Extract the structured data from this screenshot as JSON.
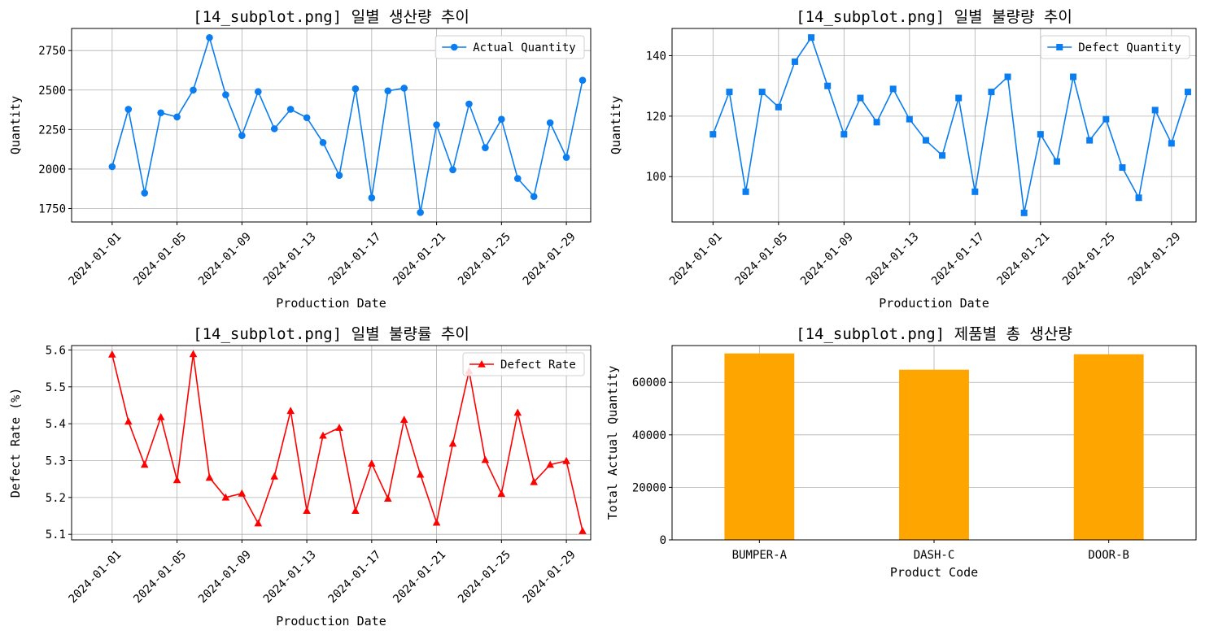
{
  "chart_data": [
    {
      "type": "line",
      "title": "[14_subplot.png] 일별 생산량 추이",
      "xlabel": "Production Date",
      "ylabel": "Quantity",
      "grid": true,
      "legend_position": "top-right",
      "marker": "circle",
      "color": "#0a7df0",
      "xlim": [
        -1.5,
        30.5
      ],
      "ylim": [
        1665,
        2890
      ],
      "yticks": [
        1750,
        2000,
        2250,
        2500,
        2750
      ],
      "xtick_indices": [
        1,
        5,
        9,
        13,
        17,
        21,
        25,
        29
      ],
      "xtick_labels": [
        "2024-01-01",
        "2024-01-05",
        "2024-01-09",
        "2024-01-13",
        "2024-01-17",
        "2024-01-21",
        "2024-01-25",
        "2024-01-29"
      ],
      "series": [
        {
          "name": "Actual Quantity",
          "x": [
            1,
            2,
            3,
            4,
            5,
            6,
            7,
            8,
            9,
            10,
            11,
            12,
            13,
            14,
            15,
            16,
            17,
            18,
            19,
            20,
            21,
            22,
            23,
            24,
            25,
            26,
            27,
            28,
            29,
            30
          ],
          "values": [
            2015,
            2378,
            1848,
            2356,
            2330,
            2500,
            2832,
            2470,
            2212,
            2490,
            2255,
            2378,
            2325,
            2168,
            1960,
            2508,
            1818,
            2495,
            2512,
            1725,
            2280,
            1995,
            2412,
            2135,
            2315,
            1940,
            1826,
            2293,
            2074,
            2562
          ]
        }
      ]
    },
    {
      "type": "line",
      "title": "[14_subplot.png] 일별 불량량 추이",
      "xlabel": "Production Date",
      "ylabel": "Quantity",
      "grid": true,
      "legend_position": "top-right",
      "marker": "square",
      "color": "#0a7df0",
      "xlim": [
        -1.5,
        30.5
      ],
      "ylim": [
        85,
        149
      ],
      "yticks": [
        100,
        120,
        140
      ],
      "xtick_indices": [
        1,
        5,
        9,
        13,
        17,
        21,
        25,
        29
      ],
      "xtick_labels": [
        "2024-01-01",
        "2024-01-05",
        "2024-01-09",
        "2024-01-13",
        "2024-01-17",
        "2024-01-21",
        "2024-01-25",
        "2024-01-29"
      ],
      "series": [
        {
          "name": "Defect Quantity",
          "x": [
            1,
            2,
            3,
            4,
            5,
            6,
            7,
            8,
            9,
            10,
            11,
            12,
            13,
            14,
            15,
            16,
            17,
            18,
            19,
            20,
            21,
            22,
            23,
            24,
            25,
            26,
            27,
            28,
            29,
            30
          ],
          "values": [
            114,
            128,
            95,
            128,
            123,
            138,
            146,
            130,
            114,
            126,
            118,
            129,
            119,
            112,
            107,
            126,
            95,
            128,
            133,
            88,
            114,
            105,
            133,
            112,
            119,
            103,
            93,
            122,
            111,
            128
          ]
        }
      ]
    },
    {
      "type": "line",
      "title": "[14_subplot.png] 일별 불량률 추이",
      "xlabel": "Production Date",
      "ylabel": "Defect Rate (%)",
      "grid": true,
      "legend_position": "top-right",
      "marker": "triangle",
      "color": "#ff0000",
      "xlim": [
        -1.5,
        30.5
      ],
      "ylim": [
        5.085,
        5.612
      ],
      "yticks": [
        5.1,
        5.2,
        5.3,
        5.4,
        5.5,
        5.6
      ],
      "xtick_indices": [
        1,
        5,
        9,
        13,
        17,
        21,
        25,
        29
      ],
      "xtick_labels": [
        "2024-01-01",
        "2024-01-05",
        "2024-01-09",
        "2024-01-13",
        "2024-01-17",
        "2024-01-21",
        "2024-01-25",
        "2024-01-29"
      ],
      "series": [
        {
          "name": "Defect Rate",
          "x": [
            1,
            2,
            3,
            4,
            5,
            6,
            7,
            8,
            9,
            10,
            11,
            12,
            13,
            14,
            15,
            16,
            17,
            18,
            19,
            20,
            21,
            22,
            23,
            24,
            25,
            26,
            27,
            28,
            29,
            30
          ],
          "values": [
            5.588,
            5.406,
            5.289,
            5.418,
            5.247,
            5.589,
            5.254,
            5.2,
            5.211,
            5.13,
            5.257,
            5.435,
            5.164,
            5.368,
            5.389,
            5.164,
            5.292,
            5.197,
            5.411,
            5.262,
            5.132,
            5.346,
            5.543,
            5.302,
            5.21,
            5.43,
            5.242,
            5.289,
            5.299,
            5.109
          ]
        }
      ]
    },
    {
      "type": "bar",
      "title": "[14_subplot.png] 제품별 총 생산량",
      "xlabel": "Product Code",
      "ylabel": "Total Actual Quantity",
      "grid": true,
      "color": "#ffa500",
      "categories": [
        "BUMPER-A",
        "DASH-C",
        "DOOR-B"
      ],
      "values": [
        71000,
        64800,
        70700
      ],
      "ylim": [
        0,
        74000
      ],
      "yticks": [
        0,
        20000,
        40000,
        60000
      ]
    }
  ]
}
